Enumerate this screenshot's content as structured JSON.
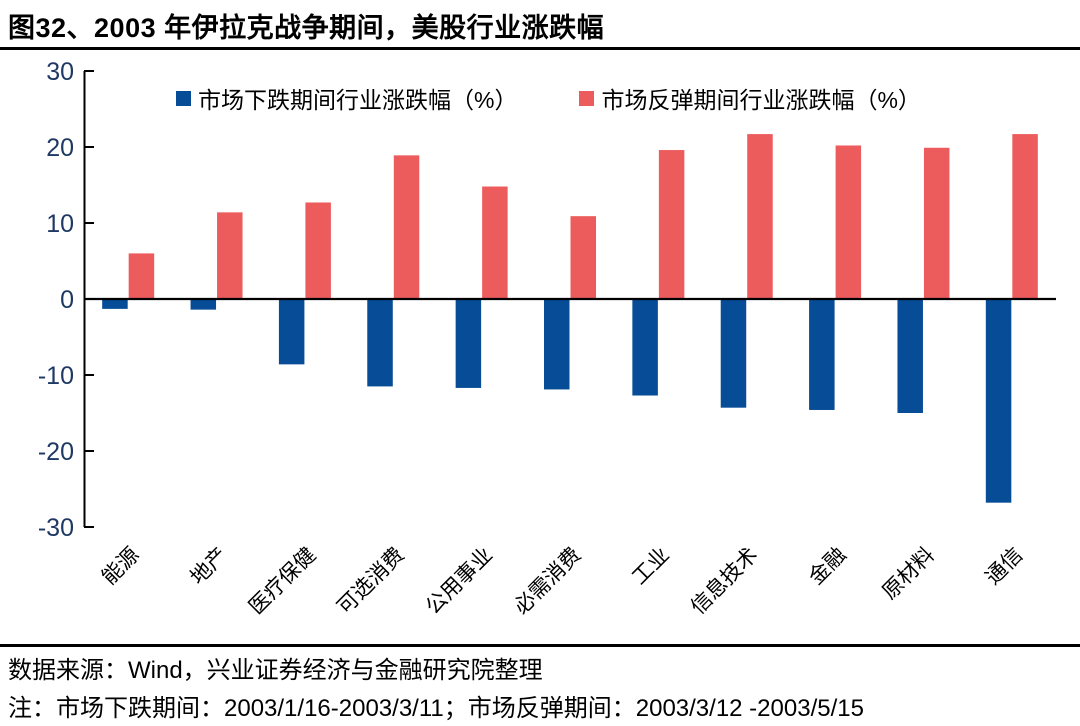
{
  "title": "图32、2003 年伊拉克战争期间，美股行业涨跌幅",
  "chart_data": {
    "type": "bar",
    "categories": [
      "能源",
      "地产",
      "医疗保健",
      "可选消费",
      "公用事业",
      "必需消费",
      "工业",
      "信息技术",
      "金融",
      "原材料",
      "通信"
    ],
    "series": [
      {
        "name": "市场下跌期间行业涨跌幅（%）",
        "color": "#074C96",
        "values": [
          -1.3,
          -1.4,
          -8.6,
          -11.5,
          -11.7,
          -11.9,
          -12.7,
          -14.3,
          -14.6,
          -15.0,
          -26.8
        ]
      },
      {
        "name": "市场反弹期间行业涨跌幅（%）",
        "color": "#ED5C5D",
        "values": [
          6.0,
          11.4,
          12.7,
          18.9,
          14.8,
          10.9,
          19.6,
          21.7,
          20.2,
          19.9,
          21.7
        ]
      }
    ],
    "title": "",
    "xlabel": "",
    "ylabel": "",
    "ylim": [
      -30,
      30
    ],
    "ytick_step": 10,
    "yticks": [
      30,
      20,
      10,
      0,
      -10,
      -20,
      -30
    ],
    "grid": false,
    "legend_position": "top",
    "axis_color": "#000000",
    "ytick_label_color": "#1F3864"
  },
  "footer": {
    "source": "数据来源：Wind，兴业证券经济与金融研究院整理",
    "note": "注：市场下跌期间：2003/1/16-2003/3/11；市场反弹期间：2003/3/12 -2003/5/15"
  }
}
